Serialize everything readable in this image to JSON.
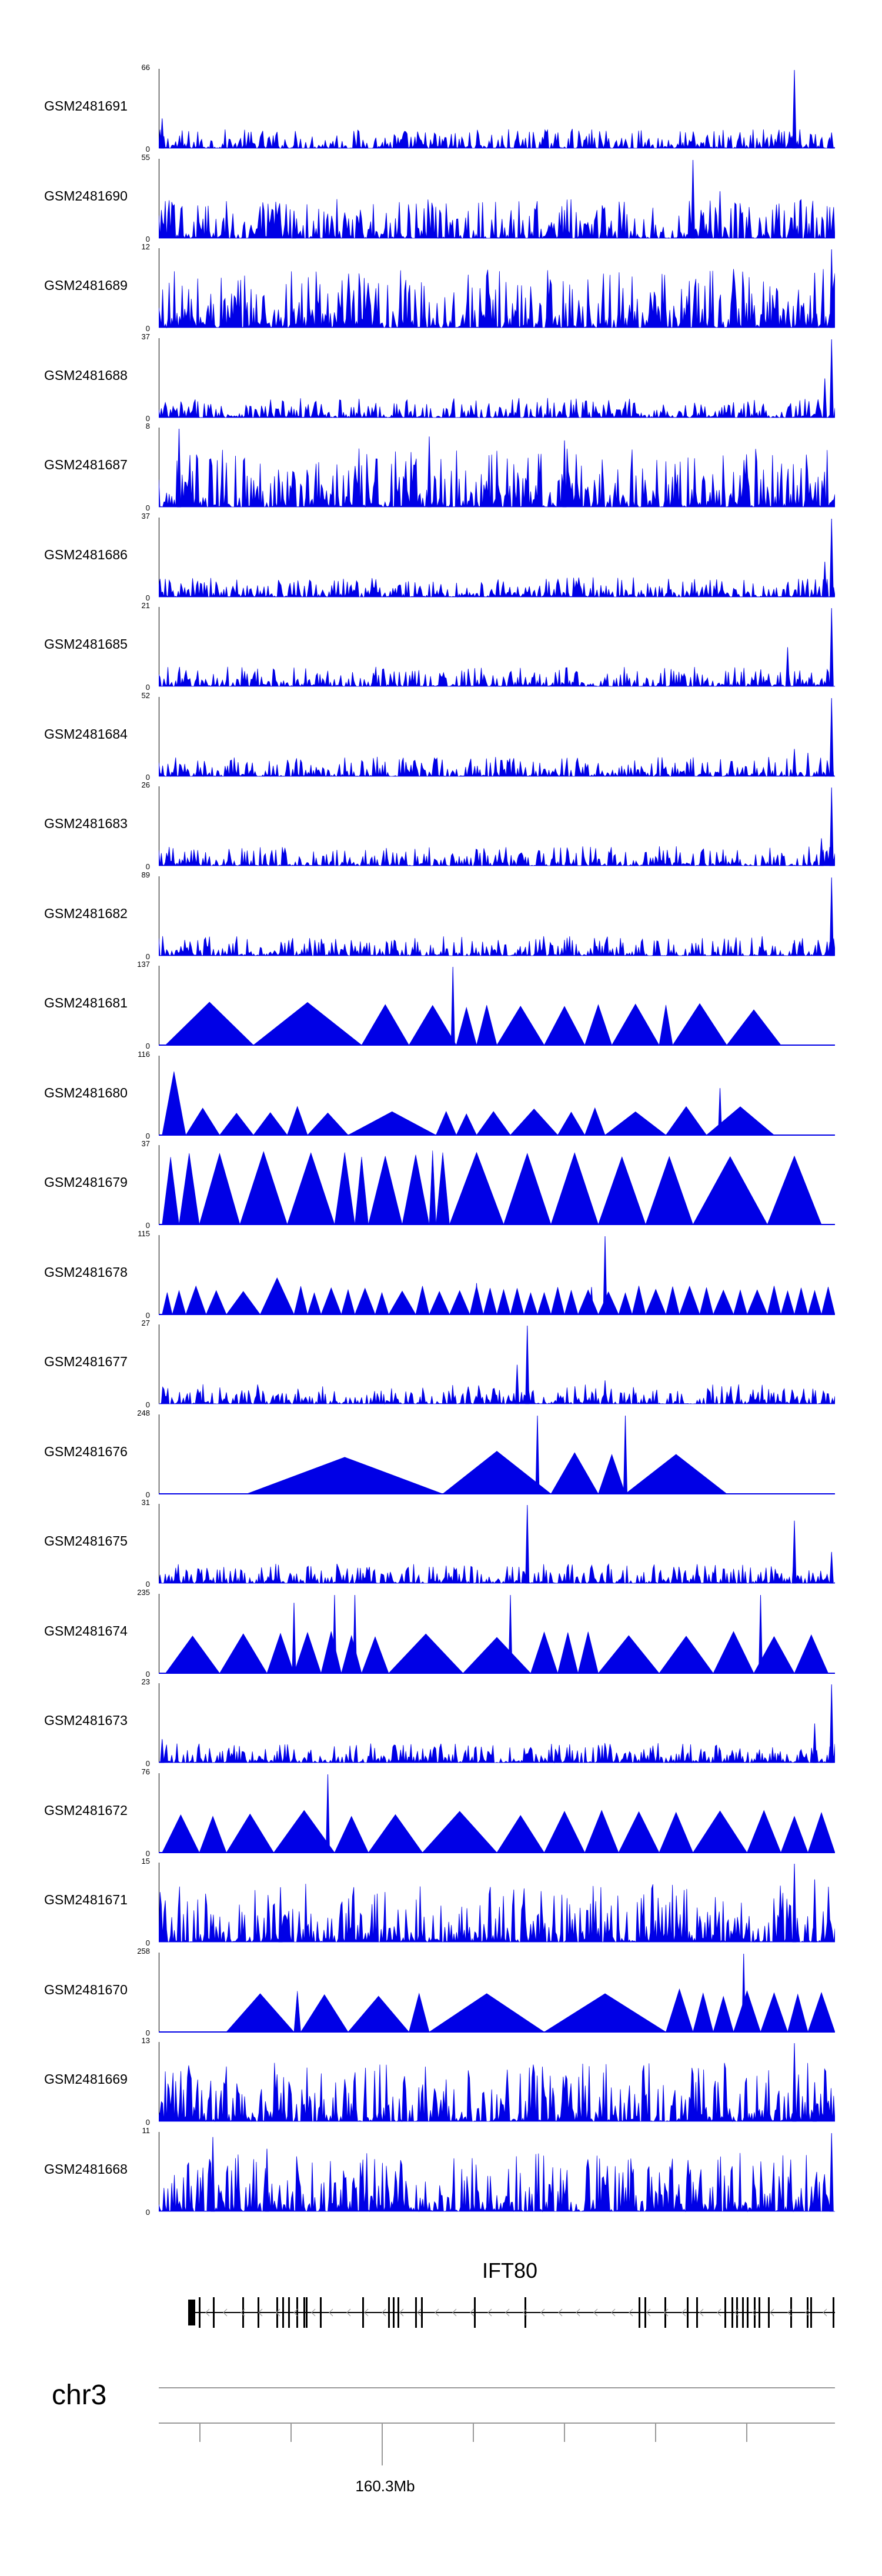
{
  "chart_data": {
    "type": "area",
    "color": "#0000e6",
    "gene": {
      "name": "IFT80",
      "strand": "-"
    },
    "chromosome": "chr3",
    "x_ticks": [
      {
        "label": "160.3Mb"
      }
    ],
    "tracks": [
      {
        "name": "GSM2481691",
        "ymin": 0,
        "ymax": 66,
        "style": "dense",
        "peaks": [
          [
            0.005,
            0.38
          ],
          [
            0.94,
            1.0
          ],
          [
            0.995,
            0.2
          ]
        ]
      },
      {
        "name": "GSM2481690",
        "ymin": 0,
        "ymax": 55,
        "style": "gappy",
        "peaks": [
          [
            0.79,
            1.0
          ],
          [
            0.83,
            0.6
          ],
          [
            0.2,
            0.35
          ]
        ]
      },
      {
        "name": "GSM2481689",
        "ymin": 0,
        "ymax": 12,
        "style": "dense",
        "peaks": [
          [
            0.995,
            1.0
          ],
          [
            0.97,
            0.7
          ]
        ]
      },
      {
        "name": "GSM2481688",
        "ymin": 0,
        "ymax": 37,
        "style": "dense",
        "peaks": [
          [
            0.995,
            1.0
          ],
          [
            0.985,
            0.5
          ]
        ]
      },
      {
        "name": "GSM2481687",
        "ymin": 0,
        "ymax": 8,
        "style": "dense",
        "peaks": [
          [
            0.03,
            1.0
          ],
          [
            0.4,
            0.9
          ],
          [
            0.6,
            0.85
          ]
        ]
      },
      {
        "name": "GSM2481686",
        "ymin": 0,
        "ymax": 37,
        "style": "dense",
        "peaks": [
          [
            0.995,
            1.0
          ],
          [
            0.985,
            0.45
          ]
        ]
      },
      {
        "name": "GSM2481685",
        "ymin": 0,
        "ymax": 21,
        "style": "dense",
        "peaks": [
          [
            0.995,
            1.0
          ],
          [
            0.93,
            0.5
          ]
        ]
      },
      {
        "name": "GSM2481684",
        "ymin": 0,
        "ymax": 52,
        "style": "dense",
        "peaks": [
          [
            0.995,
            1.0
          ],
          [
            0.94,
            0.35
          ],
          [
            0.96,
            0.3
          ]
        ]
      },
      {
        "name": "GSM2481683",
        "ymin": 0,
        "ymax": 26,
        "style": "dense",
        "peaks": [
          [
            0.995,
            1.0
          ],
          [
            0.98,
            0.35
          ]
        ]
      },
      {
        "name": "GSM2481682",
        "ymin": 0,
        "ymax": 89,
        "style": "dense",
        "peaks": [
          [
            0.995,
            1.0
          ],
          [
            0.94,
            0.2
          ]
        ]
      },
      {
        "name": "GSM2481681",
        "ymin": 0,
        "ymax": 137,
        "style": "triangles",
        "segments": [
          [
            0.01,
            0.14,
            0.5
          ],
          [
            0.14,
            0.3,
            0.5
          ],
          [
            0.3,
            0.37,
            0.5
          ],
          [
            0.37,
            0.44,
            0.5
          ],
          [
            0.44,
            0.47,
            0.5
          ],
          [
            0.47,
            0.5,
            0.5
          ],
          [
            0.5,
            0.57,
            0.5
          ],
          [
            0.57,
            0.63,
            0.5
          ],
          [
            0.63,
            0.67,
            0.5
          ],
          [
            0.67,
            0.74,
            0.5
          ],
          [
            0.74,
            0.76,
            0.5
          ],
          [
            0.76,
            0.84,
            0.5
          ],
          [
            0.84,
            0.92,
            0.5
          ]
        ],
        "peaks": [
          [
            0.435,
            1.0
          ]
        ]
      },
      {
        "name": "GSM2481680",
        "ymin": 0,
        "ymax": 116,
        "style": "triangles",
        "segments": [
          [
            0.005,
            0.04,
            0.9
          ],
          [
            0.04,
            0.09,
            0.3
          ],
          [
            0.09,
            0.14,
            0.3
          ],
          [
            0.14,
            0.19,
            0.3
          ],
          [
            0.19,
            0.22,
            0.3
          ],
          [
            0.22,
            0.28,
            0.3
          ],
          [
            0.28,
            0.41,
            0.3
          ],
          [
            0.41,
            0.44,
            0.3
          ],
          [
            0.44,
            0.47,
            0.3
          ],
          [
            0.47,
            0.52,
            0.3
          ],
          [
            0.52,
            0.59,
            0.3
          ],
          [
            0.59,
            0.63,
            0.3
          ],
          [
            0.63,
            0.66,
            0.3
          ],
          [
            0.66,
            0.75,
            0.3
          ],
          [
            0.75,
            0.81,
            0.3
          ],
          [
            0.81,
            0.91,
            0.3
          ]
        ],
        "peaks": [
          [
            0.83,
            0.6
          ]
        ]
      },
      {
        "name": "GSM2481679",
        "ymin": 0,
        "ymax": 37,
        "style": "triangles",
        "segments": [
          [
            0.005,
            0.03,
            0.95
          ],
          [
            0.03,
            0.06,
            0.95
          ],
          [
            0.06,
            0.12,
            0.95
          ],
          [
            0.12,
            0.19,
            0.95
          ],
          [
            0.19,
            0.26,
            0.95
          ],
          [
            0.26,
            0.29,
            0.95
          ],
          [
            0.29,
            0.31,
            0.95
          ],
          [
            0.31,
            0.36,
            0.95
          ],
          [
            0.36,
            0.4,
            0.95
          ],
          [
            0.4,
            0.41,
            0.95
          ],
          [
            0.41,
            0.43,
            0.95
          ],
          [
            0.43,
            0.51,
            0.95
          ],
          [
            0.51,
            0.58,
            0.95
          ],
          [
            0.58,
            0.65,
            0.95
          ],
          [
            0.65,
            0.72,
            0.95
          ],
          [
            0.72,
            0.79,
            0.95
          ],
          [
            0.79,
            0.9,
            0.95
          ],
          [
            0.9,
            0.98,
            0.95
          ]
        ],
        "peaks": []
      },
      {
        "name": "GSM2481678",
        "ymin": 0,
        "ymax": 115,
        "style": "triangles",
        "segments": [
          [
            0.005,
            0.02,
            0.3
          ],
          [
            0.02,
            0.04,
            0.3
          ],
          [
            0.04,
            0.07,
            0.3
          ],
          [
            0.07,
            0.1,
            0.3
          ],
          [
            0.1,
            0.15,
            0.3
          ],
          [
            0.15,
            0.2,
            0.5
          ],
          [
            0.2,
            0.22,
            0.3
          ],
          [
            0.22,
            0.24,
            0.3
          ],
          [
            0.24,
            0.27,
            0.3
          ],
          [
            0.27,
            0.29,
            0.3
          ],
          [
            0.29,
            0.32,
            0.3
          ],
          [
            0.32,
            0.34,
            0.3
          ],
          [
            0.34,
            0.38,
            0.3
          ],
          [
            0.38,
            0.4,
            0.3
          ],
          [
            0.4,
            0.43,
            0.3
          ],
          [
            0.43,
            0.46,
            0.3
          ],
          [
            0.46,
            0.48,
            0.3
          ],
          [
            0.48,
            0.5,
            0.3
          ],
          [
            0.5,
            0.52,
            0.3
          ],
          [
            0.52,
            0.54,
            0.3
          ],
          [
            0.54,
            0.56,
            0.3
          ],
          [
            0.56,
            0.58,
            0.3
          ],
          [
            0.58,
            0.6,
            0.3
          ],
          [
            0.6,
            0.62,
            0.3
          ],
          [
            0.62,
            0.65,
            0.3
          ],
          [
            0.65,
            0.68,
            0.3
          ],
          [
            0.68,
            0.7,
            0.3
          ],
          [
            0.7,
            0.72,
            0.3
          ],
          [
            0.72,
            0.75,
            0.3
          ],
          [
            0.75,
            0.77,
            0.3
          ],
          [
            0.77,
            0.8,
            0.3
          ],
          [
            0.8,
            0.82,
            0.3
          ],
          [
            0.82,
            0.85,
            0.3
          ],
          [
            0.85,
            0.87,
            0.3
          ],
          [
            0.87,
            0.9,
            0.3
          ],
          [
            0.9,
            0.92,
            0.3
          ],
          [
            0.92,
            0.94,
            0.3
          ],
          [
            0.94,
            0.96,
            0.3
          ],
          [
            0.96,
            0.98,
            0.3
          ],
          [
            0.98,
            1.0,
            0.3
          ]
        ],
        "peaks": [
          [
            0.66,
            1.0
          ],
          [
            0.64,
            0.35
          ],
          [
            0.47,
            0.4
          ]
        ]
      },
      {
        "name": "GSM2481677",
        "ymin": 0,
        "ymax": 27,
        "style": "dense",
        "peaks": [
          [
            0.545,
            1.0
          ],
          [
            0.53,
            0.5
          ],
          [
            0.66,
            0.3
          ]
        ]
      },
      {
        "name": "GSM2481676",
        "ymin": 0,
        "ymax": 248,
        "style": "triangles",
        "segments": [
          [
            0.13,
            0.42,
            0.5
          ],
          [
            0.42,
            0.58,
            0.5
          ],
          [
            0.58,
            0.65,
            0.5
          ],
          [
            0.65,
            0.69,
            0.5
          ],
          [
            0.69,
            0.84,
            0.5
          ]
        ],
        "peaks": [
          [
            0.56,
            1.0
          ],
          [
            0.69,
            1.0
          ]
        ]
      },
      {
        "name": "GSM2481675",
        "ymin": 0,
        "ymax": 31,
        "style": "dense",
        "peaks": [
          [
            0.545,
            1.0
          ],
          [
            0.94,
            0.8
          ],
          [
            0.995,
            0.4
          ]
        ]
      },
      {
        "name": "GSM2481674",
        "ymin": 0,
        "ymax": 235,
        "style": "triangles",
        "segments": [
          [
            0.01,
            0.09,
            0.5
          ],
          [
            0.09,
            0.16,
            0.5
          ],
          [
            0.16,
            0.2,
            0.5
          ],
          [
            0.2,
            0.24,
            0.5
          ],
          [
            0.24,
            0.27,
            0.5
          ],
          [
            0.27,
            0.3,
            0.5
          ],
          [
            0.3,
            0.34,
            0.5
          ],
          [
            0.34,
            0.45,
            0.5
          ],
          [
            0.45,
            0.55,
            0.5
          ],
          [
            0.55,
            0.59,
            0.5
          ],
          [
            0.59,
            0.62,
            0.5
          ],
          [
            0.62,
            0.65,
            0.5
          ],
          [
            0.65,
            0.74,
            0.5
          ],
          [
            0.74,
            0.82,
            0.5
          ],
          [
            0.82,
            0.88,
            0.5
          ],
          [
            0.88,
            0.94,
            0.5
          ],
          [
            0.94,
            0.99,
            0.5
          ]
        ],
        "peaks": [
          [
            0.26,
            1.0
          ],
          [
            0.2,
            0.9
          ],
          [
            0.29,
            1.0
          ],
          [
            0.52,
            1.0
          ],
          [
            0.89,
            1.0
          ]
        ]
      },
      {
        "name": "GSM2481673",
        "ymin": 0,
        "ymax": 23,
        "style": "dense",
        "peaks": [
          [
            0.995,
            1.0
          ],
          [
            0.005,
            0.3
          ],
          [
            0.97,
            0.5
          ]
        ]
      },
      {
        "name": "GSM2481672",
        "ymin": 0,
        "ymax": 76,
        "style": "triangles",
        "segments": [
          [
            0.005,
            0.06,
            0.5
          ],
          [
            0.06,
            0.1,
            0.5
          ],
          [
            0.1,
            0.17,
            0.5
          ],
          [
            0.17,
            0.26,
            0.5
          ],
          [
            0.26,
            0.31,
            0.5
          ],
          [
            0.31,
            0.39,
            0.5
          ],
          [
            0.39,
            0.5,
            0.5
          ],
          [
            0.5,
            0.57,
            0.5
          ],
          [
            0.57,
            0.63,
            0.5
          ],
          [
            0.63,
            0.68,
            0.5
          ],
          [
            0.68,
            0.74,
            0.5
          ],
          [
            0.74,
            0.79,
            0.5
          ],
          [
            0.79,
            0.87,
            0.5
          ],
          [
            0.87,
            0.92,
            0.5
          ],
          [
            0.92,
            0.96,
            0.5
          ],
          [
            0.96,
            1.0,
            0.5
          ]
        ],
        "peaks": [
          [
            0.25,
            1.0
          ]
        ]
      },
      {
        "name": "GSM2481671",
        "ymin": 0,
        "ymax": 15,
        "style": "dense",
        "peaks": [
          [
            0.94,
            1.0
          ],
          [
            0.18,
            0.7
          ],
          [
            0.97,
            0.8
          ]
        ]
      },
      {
        "name": "GSM2481670",
        "ymin": 0,
        "ymax": 258,
        "style": "triangles",
        "segments": [
          [
            0.1,
            0.2,
            0.5
          ],
          [
            0.2,
            0.21,
            0.5
          ],
          [
            0.21,
            0.28,
            0.5
          ],
          [
            0.28,
            0.37,
            0.5
          ],
          [
            0.37,
            0.4,
            0.5
          ],
          [
            0.4,
            0.57,
            0.5
          ],
          [
            0.57,
            0.75,
            0.5
          ],
          [
            0.75,
            0.79,
            0.5
          ],
          [
            0.79,
            0.82,
            0.5
          ],
          [
            0.82,
            0.85,
            0.5
          ],
          [
            0.85,
            0.89,
            0.5
          ],
          [
            0.89,
            0.93,
            0.5
          ],
          [
            0.93,
            0.96,
            0.5
          ],
          [
            0.96,
            1.0,
            0.5
          ]
        ],
        "peaks": [
          [
            0.865,
            1.0
          ]
        ]
      },
      {
        "name": "GSM2481669",
        "ymin": 0,
        "ymax": 13,
        "style": "dense",
        "peaks": [
          [
            0.94,
            1.0
          ],
          [
            0.97,
            0.5
          ]
        ]
      },
      {
        "name": "GSM2481668",
        "ymin": 0,
        "ymax": 11,
        "style": "dense",
        "peaks": [
          [
            0.08,
            0.95
          ],
          [
            0.995,
            1.0
          ],
          [
            0.16,
            0.8
          ]
        ]
      }
    ]
  }
}
